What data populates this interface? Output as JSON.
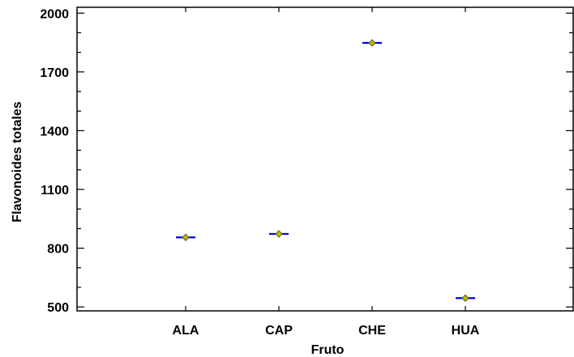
{
  "chart_data": {
    "type": "scatter",
    "title": "",
    "xlabel": "Fruto",
    "ylabel": "Flavonoides totales",
    "categories": [
      "ALA",
      "CAP",
      "CHE",
      "HUA"
    ],
    "series": [
      {
        "values": [
          855,
          873,
          1848,
          545
        ]
      }
    ],
    "ylim": [
      480,
      2030
    ],
    "yticks_major": [
      500,
      800,
      1100,
      1400,
      1700,
      2000
    ],
    "yticks_minor_step": 100,
    "grid": false,
    "legend": "none",
    "colors": {
      "mean_line": "#0000ee",
      "marker_fill": "#c8b400",
      "marker_edge": "#4a6a10",
      "axis": "#000000"
    }
  }
}
